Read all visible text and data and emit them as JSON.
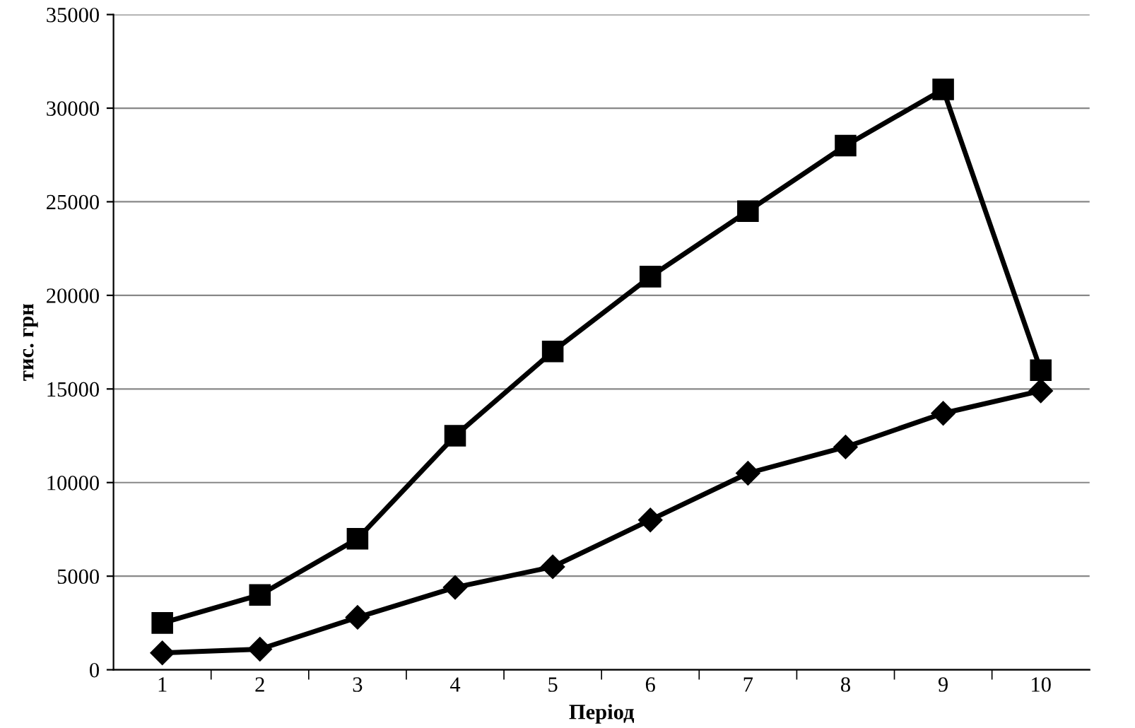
{
  "chart_data": {
    "type": "line",
    "xlabel": "Період",
    "ylabel": "тис. грн",
    "categories": [
      "1",
      "2",
      "3",
      "4",
      "5",
      "6",
      "7",
      "8",
      "9",
      "10"
    ],
    "series": [
      {
        "color": "#000000",
        "marker": "diamond",
        "values": [
          900,
          1100,
          2800,
          4400,
          5500,
          8000,
          10500,
          11900,
          13700,
          14900
        ]
      },
      {
        "color": "#000000",
        "marker": "square",
        "values": [
          2500,
          4000,
          7000,
          12500,
          17000,
          21000,
          24500,
          28000,
          31000,
          16000
        ]
      }
    ],
    "ylim": [
      0,
      35000
    ],
    "yticks": [
      0,
      5000,
      10000,
      15000,
      20000,
      25000,
      30000,
      35000
    ],
    "grid": "y",
    "line_style": "solid"
  }
}
